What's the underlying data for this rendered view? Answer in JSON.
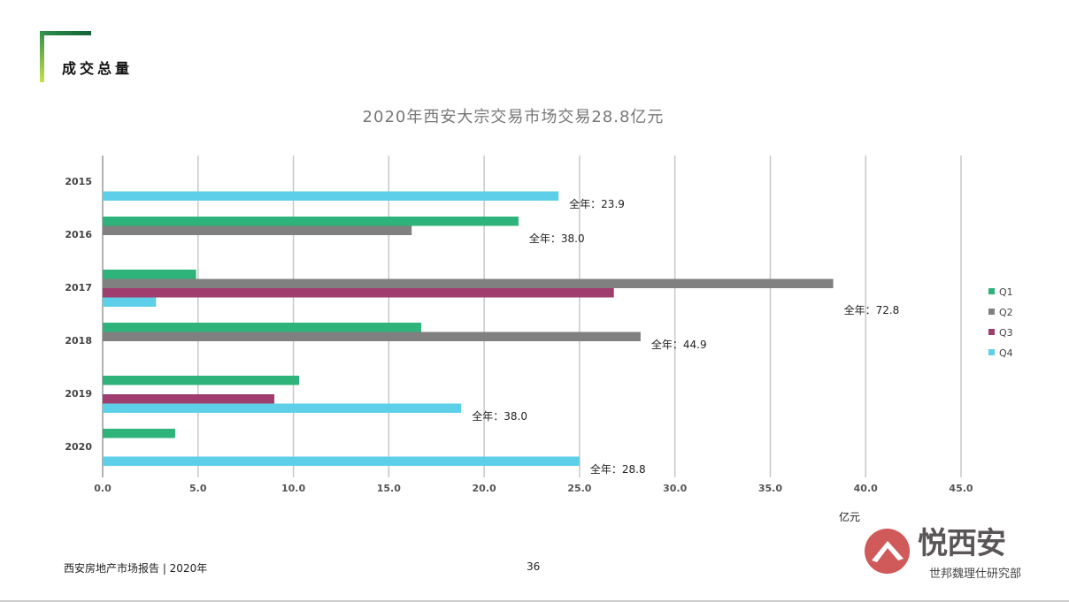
{
  "section_title": "成交总量",
  "footer": {
    "report": "西安房地产市场报告 | 2020年",
    "page": "36"
  },
  "logo": {
    "text": "悦西安",
    "subtext": "世邦魏理仕研究部"
  },
  "chart_data": {
    "type": "bar",
    "orientation": "horizontal",
    "stacked": false,
    "title": "2020年西安大宗交易市场交易28.8亿元",
    "xlabel": "亿元",
    "ylabel": "",
    "xlim": [
      0,
      45
    ],
    "xticks": [
      "0.0",
      "5.0",
      "10.0",
      "15.0",
      "20.0",
      "25.0",
      "30.0",
      "35.0",
      "40.0",
      "45.0"
    ],
    "grid": true,
    "legend": "right",
    "categories": [
      "2015",
      "2016",
      "2017",
      "2018",
      "2019",
      "2020"
    ],
    "series": [
      {
        "name": "Q1",
        "color": "#2eb37a",
        "values": [
          null,
          21.8,
          4.9,
          16.7,
          10.3,
          3.8
        ]
      },
      {
        "name": "Q2",
        "color": "#808080",
        "values": [
          null,
          16.2,
          38.3,
          28.2,
          null,
          null
        ]
      },
      {
        "name": "Q3",
        "color": "#9e3d6e",
        "values": [
          null,
          null,
          26.8,
          null,
          9.0,
          null
        ]
      },
      {
        "name": "Q4",
        "color": "#5ecfe8",
        "values": [
          23.9,
          null,
          2.8,
          null,
          18.8,
          25.0
        ]
      }
    ],
    "annotations": [
      "全年：23.9",
      "全年：38.0",
      "全年：72.8",
      "全年：44.9",
      "全年：38.0",
      "全年：28.8"
    ]
  }
}
